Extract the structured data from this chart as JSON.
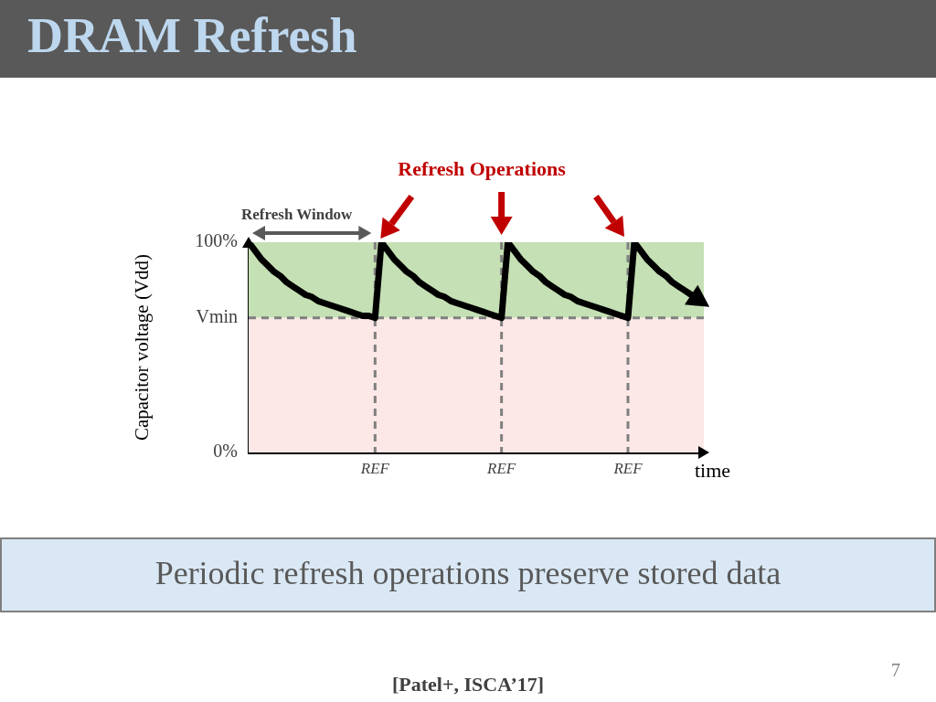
{
  "chart_data": {
    "type": "line",
    "title": "DRAM Refresh",
    "ylabel": "Capacitor voltage (Vdd)",
    "xlabel": "time",
    "categories": [
      null,
      null,
      null,
      null,
      null,
      null,
      null,
      null,
      null,
      null,
      null,
      null,
      null,
      null,
      null,
      null,
      null,
      null,
      null,
      null,
      "REF",
      null,
      null,
      null,
      null,
      null,
      null,
      null,
      null,
      null,
      null,
      null,
      null,
      null,
      null,
      null,
      null,
      null,
      null,
      null,
      "REF",
      null,
      null,
      null,
      null,
      null,
      null,
      null,
      null,
      null,
      null,
      null,
      null,
      null,
      null,
      null,
      null,
      null,
      null,
      null,
      "REF",
      null,
      null,
      null,
      null,
      null,
      null,
      null,
      null,
      null,
      null,
      null,
      null
    ],
    "series": [
      {
        "color": "#000000",
        "values": [
          100,
          96,
          92,
          89,
          86,
          84,
          81,
          79,
          77,
          75,
          74,
          72,
          71,
          70,
          69,
          68,
          67,
          66,
          65,
          65,
          64,
          100,
          96,
          92,
          89,
          86,
          84,
          81,
          79,
          77,
          75,
          74,
          72,
          71,
          70,
          69,
          68,
          67,
          66,
          65,
          64,
          100,
          96,
          92,
          89,
          86,
          84,
          81,
          79,
          77,
          75,
          74,
          72,
          71,
          70,
          69,
          68,
          67,
          66,
          65,
          64,
          100,
          96,
          92,
          89,
          86,
          84,
          81,
          79,
          77,
          75,
          null,
          null
        ]
      }
    ],
    "ylim": [
      0,
      100
    ],
    "yticks": [
      {
        "value": 0,
        "label": "0%"
      },
      {
        "value": 64,
        "label": "Vmin"
      },
      {
        "value": 100,
        "label": "100%"
      }
    ],
    "bands": [
      {
        "axis": "y",
        "from": 64,
        "to": 100,
        "color": "#c5e0b4"
      },
      {
        "axis": "y",
        "from": 0,
        "to": 64,
        "color": "#fde8e8"
      }
    ],
    "ref_lines": [
      {
        "axis": "y",
        "value": 64,
        "color": "#7f7f7f",
        "line_style": "dashed"
      }
    ],
    "grid": "x",
    "marker": "none",
    "line_style": "solid",
    "annotations": [
      "Refresh Operations",
      "Refresh Window",
      "Periodic refresh operations preserve stored data",
      "[Patel+, ISCA’17]",
      "7"
    ]
  }
}
